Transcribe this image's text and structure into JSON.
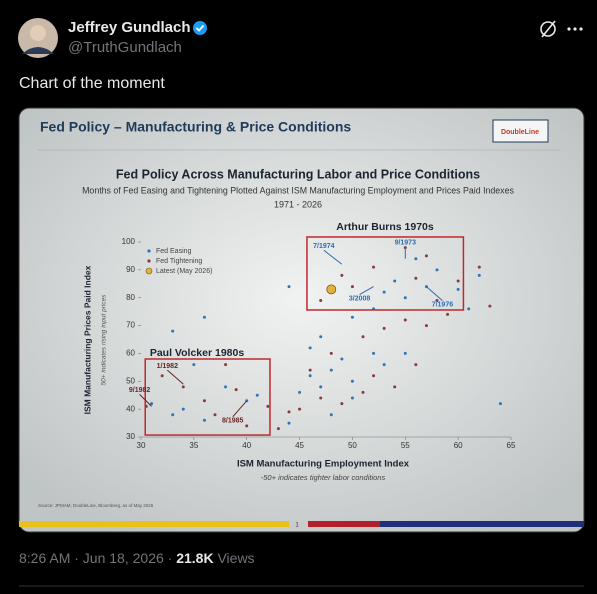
{
  "tweet": {
    "author": "Jeffrey Gundlach",
    "handle": "@TruthGundlach",
    "text": "Chart of the moment",
    "time": "8:26 AM · Jun 18, 2026 ·",
    "views": "21.8K",
    "views_label": "Views"
  },
  "slide": {
    "title": "Fed Policy – Manufacturing & Price Conditions",
    "logo": "DoubleLine",
    "source": "Source: JPMAM, DoubleLine, Bloomberg, as of May 2026",
    "page": "1"
  },
  "chart_data": {
    "type": "scatter",
    "title": "Fed Policy Across Manufacturing Labor and Price Conditions",
    "subtitle": "Months of Fed Easing and Tightening Plotted Against ISM Manufacturing Employment and Prices Paid Indexes",
    "period": "1971 - 2026",
    "x_label": "ISM Manufacturing Employment Index",
    "x_note": "-50+ indicates tighter labor conditions",
    "y_label": "ISM Manufacturing Prices Paid Index",
    "y_note": "50+ indicates rising input prices",
    "xlim": [
      30,
      65
    ],
    "ylim": [
      30,
      100
    ],
    "xticks": [
      30,
      35,
      40,
      45,
      50,
      55,
      60,
      65
    ],
    "yticks": [
      30,
      40,
      50,
      60,
      70,
      80,
      90,
      100
    ],
    "series": [
      {
        "name": "Fed Easing",
        "color": "#2e75b6",
        "x": [
          31,
          33,
          34,
          36,
          38,
          40,
          41,
          44,
          46,
          47,
          48,
          49,
          50,
          52,
          53,
          46,
          47,
          50,
          52,
          55,
          54,
          57,
          60,
          58,
          62,
          44,
          36,
          33,
          35,
          45,
          48,
          50,
          55,
          61,
          64,
          56,
          53
        ],
        "y": [
          42,
          38,
          40,
          36,
          48,
          43,
          45,
          35,
          52,
          48,
          54,
          58,
          50,
          60,
          56,
          62,
          66,
          73,
          76,
          80,
          86,
          84,
          83,
          90,
          88,
          84,
          73,
          68,
          56,
          46,
          38,
          44,
          60,
          76,
          42,
          94,
          82
        ]
      },
      {
        "name": "Fed Tightening",
        "color": "#8b3a3a",
        "x": [
          30.5,
          32,
          34,
          36,
          37,
          39,
          42,
          43,
          45,
          47,
          49,
          51,
          52,
          54,
          56,
          51,
          53,
          55,
          57,
          59,
          58,
          60,
          56,
          50,
          47,
          49,
          52,
          55,
          57,
          62,
          63,
          46,
          48,
          44,
          40,
          38
        ],
        "y": [
          41,
          52,
          48,
          43,
          38,
          47,
          41,
          33,
          40,
          44,
          42,
          46,
          52,
          48,
          56,
          66,
          69,
          72,
          70,
          74,
          79,
          86,
          87,
          84,
          79,
          88,
          91,
          98,
          95,
          91,
          77,
          54,
          60,
          39,
          34,
          56
        ]
      },
      {
        "name": "Latest (May 2026)",
        "color": "#e3b23c",
        "x": [
          48
        ],
        "y": [
          83
        ]
      }
    ],
    "boxes": [
      {
        "label": "Arthur Burns 1970s",
        "x": [
          45.7,
          60.5
        ],
        "y": [
          75.6,
          101.8
        ]
      },
      {
        "label": "Paul Volcker 1980s",
        "x": [
          30.4,
          42.2
        ],
        "y": [
          30.7,
          58
        ]
      }
    ],
    "annotations": [
      {
        "text": "7/1974",
        "x": 49,
        "y": 92
      },
      {
        "text": "9/1973",
        "x": 55,
        "y": 94
      },
      {
        "text": "3/2008",
        "x": 52,
        "y": 84
      },
      {
        "text": "7/1976",
        "x": 57,
        "y": 84
      },
      {
        "text": "1/1982",
        "x": 34,
        "y": 49
      },
      {
        "text": "9/1982",
        "x": 31,
        "y": 41
      },
      {
        "text": "8/1985",
        "x": 40,
        "y": 43
      }
    ]
  }
}
